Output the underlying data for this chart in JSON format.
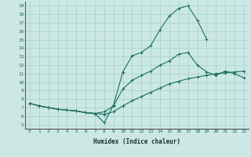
{
  "xlabel": "Humidex (Indice chaleur)",
  "background_color": "#cce8e4",
  "grid_color": "#aad4ce",
  "line_color": "#1a6e60",
  "xlim": [
    -0.5,
    23.5
  ],
  "ylim": [
    4.5,
    19.5
  ],
  "xticks": [
    0,
    1,
    2,
    3,
    4,
    5,
    6,
    7,
    8,
    9,
    10,
    11,
    12,
    13,
    14,
    15,
    16,
    17,
    18,
    19,
    20,
    21,
    22,
    23
  ],
  "yticks": [
    5,
    6,
    7,
    8,
    9,
    10,
    11,
    12,
    13,
    14,
    15,
    16,
    17,
    18,
    19
  ],
  "line1_x": [
    0,
    1,
    2,
    3,
    4,
    5,
    6,
    7,
    8,
    9,
    10,
    11,
    12,
    13,
    14,
    15,
    16,
    17,
    18,
    19
  ],
  "line1_y": [
    7.5,
    7.2,
    7.0,
    6.8,
    6.7,
    6.6,
    6.4,
    6.3,
    5.2,
    7.3,
    11.2,
    13.1,
    13.5,
    14.3,
    16.2,
    17.8,
    18.7,
    19.0,
    17.3,
    15.1
  ],
  "line2_x": [
    0,
    1,
    2,
    3,
    4,
    5,
    6,
    7,
    8,
    9,
    10,
    11,
    12,
    13,
    14,
    15,
    16,
    17,
    18,
    19,
    20,
    21,
    22,
    23
  ],
  "line2_y": [
    7.5,
    7.2,
    7.0,
    6.8,
    6.7,
    6.6,
    6.4,
    6.3,
    6.5,
    7.2,
    9.2,
    10.2,
    10.8,
    11.3,
    12.0,
    12.5,
    13.3,
    13.5,
    12.0,
    11.2,
    10.8,
    11.3,
    11.0,
    10.5
  ],
  "line3_x": [
    0,
    1,
    2,
    3,
    4,
    5,
    6,
    7,
    8,
    9,
    10,
    11,
    12,
    13,
    14,
    15,
    16,
    17,
    18,
    19,
    20,
    21,
    22,
    23
  ],
  "line3_y": [
    7.5,
    7.2,
    7.0,
    6.8,
    6.7,
    6.6,
    6.4,
    6.3,
    6.2,
    6.5,
    7.2,
    7.8,
    8.3,
    8.8,
    9.3,
    9.8,
    10.1,
    10.4,
    10.6,
    10.8,
    11.0,
    11.1,
    11.2,
    11.3
  ]
}
